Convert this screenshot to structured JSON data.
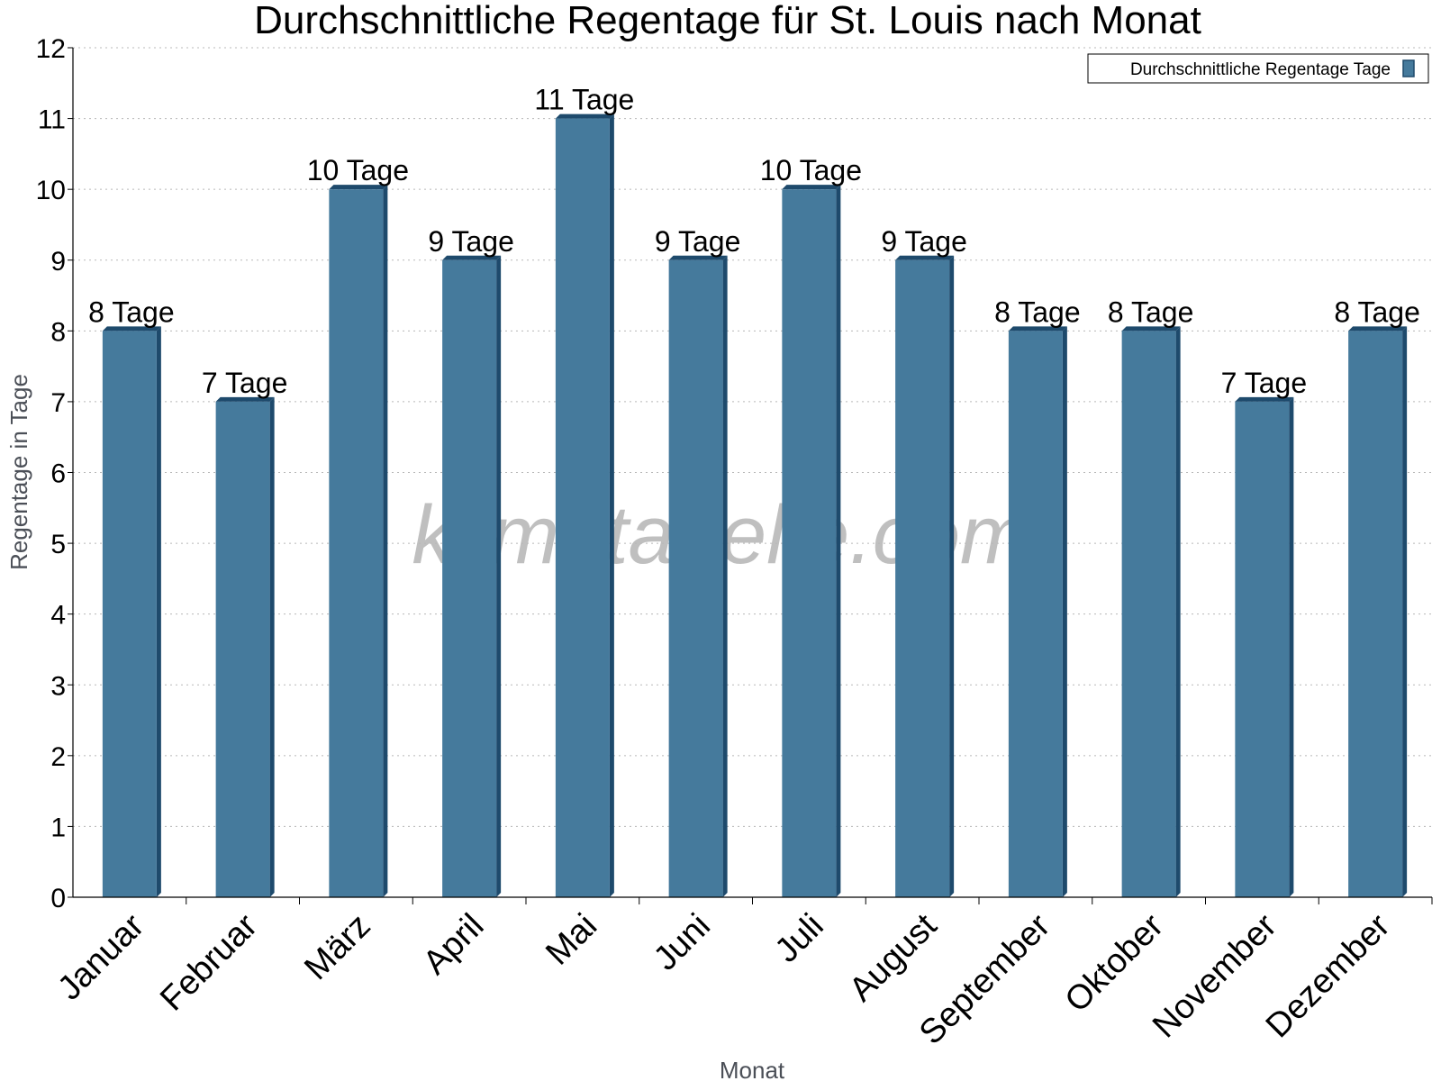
{
  "chart_data": {
    "type": "bar",
    "title": "Durchschnittliche Regentage für St. Louis nach Monat",
    "xlabel": "Monat",
    "ylabel": "Regentage in Tage",
    "ylim": [
      0,
      12
    ],
    "yticks": [
      0,
      1,
      2,
      3,
      4,
      5,
      6,
      7,
      8,
      9,
      10,
      11,
      12
    ],
    "grid": true,
    "legend_position": "top-right",
    "categories": [
      "Januar",
      "Februar",
      "März",
      "April",
      "Mai",
      "Juni",
      "Juli",
      "August",
      "September",
      "Oktober",
      "November",
      "Dezember"
    ],
    "series": [
      {
        "name": "Durchschnittliche Regentage Tage",
        "values": [
          8,
          7,
          10,
          9,
          11,
          9,
          10,
          9,
          8,
          8,
          7,
          8
        ],
        "labels": [
          "8 Tage",
          "7 Tage",
          "10 Tage",
          "9 Tage",
          "11 Tage",
          "9 Tage",
          "10 Tage",
          "9 Tage",
          "8 Tage",
          "8 Tage",
          "7 Tage",
          "8 Tage"
        ],
        "color": "#457a9c",
        "side_color": "#1e4a6c"
      }
    ]
  },
  "watermark": "klimatabelle.com"
}
